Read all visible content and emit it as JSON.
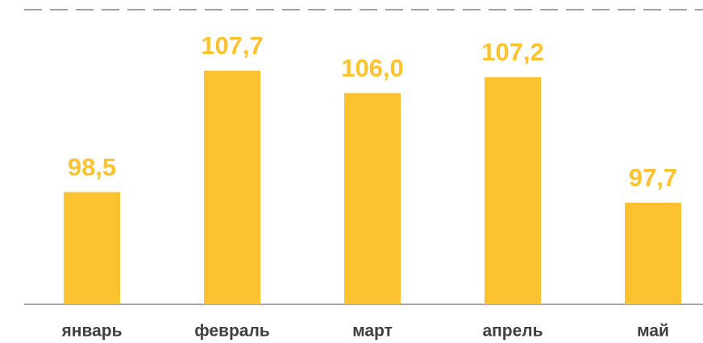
{
  "chart_data": {
    "type": "bar",
    "categories": [
      "январь",
      "февраль",
      "март",
      "апрель",
      "май"
    ],
    "values": [
      98.5,
      107.7,
      106.0,
      107.2,
      97.7
    ],
    "value_labels": [
      "98,5",
      "107,7",
      "106,0",
      "107,2",
      "97,7"
    ],
    "color": "#fdc22f",
    "ylim": [
      90,
      110
    ]
  }
}
